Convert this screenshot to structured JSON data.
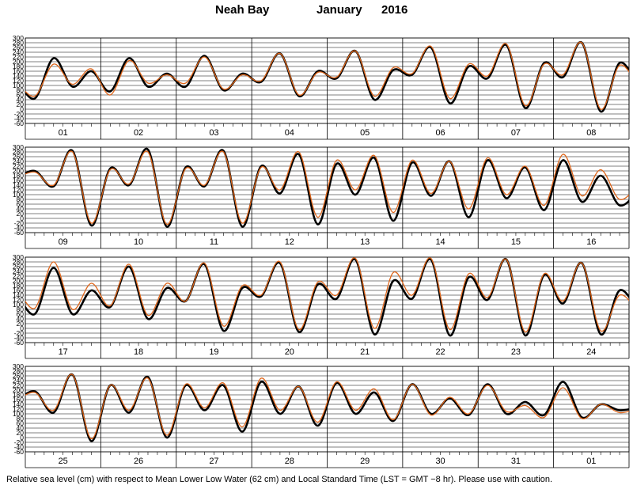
{
  "title": {
    "station": "Neah Bay",
    "month": "January",
    "year": "2016"
  },
  "footer": "Relative sea level (cm) with respect to Mean Lower Low Water (62 cm) and Local Standard Time (LST = GMT −8 hr). Please use with caution.",
  "colors": {
    "observed": "#000000",
    "predicted": "#e0661a",
    "grid": "#000000"
  },
  "chart_data": {
    "type": "line",
    "yticks": [
      300,
      280,
      260,
      240,
      220,
      200,
      180,
      160,
      140,
      120,
      100,
      80,
      60,
      40,
      20,
      0,
      -20,
      -40,
      -60
    ],
    "ylim": [
      -60,
      300
    ],
    "series_names": [
      "observed",
      "predicted"
    ],
    "rows": [
      {
        "day_labels": [
          "01",
          "02",
          "03",
          "04",
          "05",
          "06",
          "07",
          "08"
        ],
        "observed": [
          45,
          215,
          95,
          160,
          75,
          215,
          95,
          150,
          95,
          225,
          80,
          150,
          115,
          235,
          55,
          160,
          130,
          245,
          40,
          165,
          145,
          260,
          25,
          180,
          130,
          270,
          5,
          195,
          135,
          280,
          -10,
          195
        ],
        "predicted": [
          55,
          190,
          105,
          170,
          60,
          205,
          110,
          145,
          110,
          220,
          85,
          145,
          120,
          235,
          60,
          155,
          135,
          245,
          55,
          175,
          150,
          265,
          45,
          190,
          140,
          275,
          15,
          190,
          145,
          280,
          0,
          185
        ]
      },
      {
        "day_labels": [
          "09",
          "10",
          "11",
          "12",
          "13",
          "14",
          "15",
          "16"
        ],
        "observed": [
          200,
          135,
          285,
          -30,
          210,
          140,
          290,
          -35,
          215,
          135,
          285,
          -35,
          220,
          105,
          270,
          -25,
          230,
          100,
          255,
          -10,
          235,
          95,
          240,
          5,
          245,
          85,
          215,
          35,
          245,
          70,
          180,
          55
        ],
        "predicted": [
          195,
          140,
          280,
          -20,
          205,
          145,
          280,
          -25,
          210,
          140,
          280,
          -20,
          215,
          120,
          280,
          5,
          245,
          120,
          265,
          25,
          245,
          105,
          240,
          40,
          255,
          100,
          220,
          55,
          270,
          95,
          205,
          80
        ]
      },
      {
        "day_labels": [
          "17",
          "18",
          "19",
          "20",
          "21",
          "22",
          "23",
          "24"
        ],
        "observed": [
          60,
          255,
          60,
          160,
          90,
          260,
          40,
          170,
          115,
          270,
          -10,
          170,
          135,
          275,
          -15,
          185,
          125,
          290,
          -25,
          200,
          125,
          290,
          -30,
          215,
          120,
          290,
          -30,
          225,
          105,
          275,
          -25,
          160
        ],
        "predicted": [
          85,
          280,
          80,
          190,
          95,
          270,
          55,
          190,
          115,
          275,
          10,
          180,
          140,
          280,
          -5,
          195,
          140,
          295,
          0,
          235,
          140,
          295,
          -5,
          230,
          130,
          290,
          -15,
          230,
          115,
          275,
          -10,
          140
        ]
      },
      {
        "day_labels": [
          "25",
          "26",
          "27",
          "28",
          "29",
          "30",
          "31",
          "01"
        ],
        "observed": [
          195,
          105,
          265,
          -15,
          220,
          105,
          255,
          0,
          220,
          115,
          220,
          25,
          235,
          100,
          215,
          50,
          230,
          100,
          190,
          70,
          225,
          100,
          165,
          95,
          225,
          100,
          150,
          95,
          235,
          85,
          140,
          115
        ],
        "predicted": [
          190,
          115,
          265,
          -5,
          220,
          115,
          250,
          10,
          225,
          125,
          230,
          45,
          250,
          115,
          215,
          65,
          235,
          115,
          205,
          75,
          225,
          95,
          170,
          100,
          220,
          110,
          135,
          85,
          210,
          80,
          140,
          105
        ]
      }
    ]
  }
}
